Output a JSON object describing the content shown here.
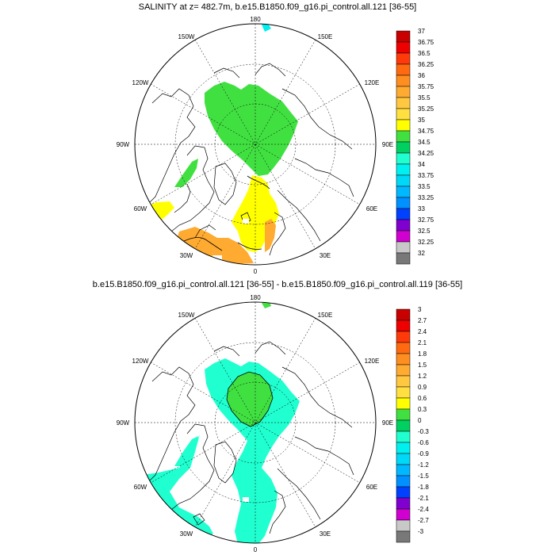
{
  "panels": [
    {
      "id": "top",
      "title": "SALINITY at z= 482.7m, b.e15.B1850.f09_g16.pi_control.all.121 [36-55]",
      "longitude_labels": [
        "180",
        "150E",
        "120E",
        "90E",
        "60E",
        "30E",
        "0",
        "30W",
        "60W",
        "90W",
        "120W",
        "150W"
      ],
      "colorbar_labels": [
        "37",
        "36.75",
        "36.5",
        "36.25",
        "36",
        "35.75",
        "35.5",
        "35.25",
        "35",
        "34.75",
        "34.5",
        "34.25",
        "34",
        "33.75",
        "33.5",
        "33.25",
        "33",
        "32.75",
        "32.5",
        "32.25",
        "32"
      ],
      "colorbar_colors": [
        "#c80000",
        "#ee0000",
        "#ff3a0a",
        "#ff6a10",
        "#ff8e20",
        "#ffaa30",
        "#ffc840",
        "#ffe040",
        "#ffff00",
        "#41e041",
        "#00d060",
        "#20ffd0",
        "#00f0f0",
        "#00d8f8",
        "#00b8ff",
        "#0090ff",
        "#0040ff",
        "#8000d0",
        "#d000d0",
        "#c8c8c8",
        "#787878"
      ]
    },
    {
      "id": "bottom",
      "title": "b.e15.B1850.f09_g16.pi_control.all.121 [36-55] - b.e15.B1850.f09_g16.pi_control.all.119 [36-55]",
      "longitude_labels": [
        "180",
        "150E",
        "120E",
        "90E",
        "60E",
        "30E",
        "0",
        "30W",
        "60W",
        "90W",
        "120W",
        "150W"
      ],
      "colorbar_labels": [
        "3",
        "2.7",
        "2.4",
        "2.1",
        "1.8",
        "1.5",
        "1.2",
        "0.9",
        "0.6",
        "0.3",
        "0",
        "-0.3",
        "-0.6",
        "-0.9",
        "-1.2",
        "-1.5",
        "-1.8",
        "-2.1",
        "-2.4",
        "-2.7",
        "-3"
      ],
      "colorbar_colors": [
        "#c80000",
        "#ee0000",
        "#ff3a0a",
        "#ff6a10",
        "#ff8e20",
        "#ffaa30",
        "#ffc840",
        "#ffe040",
        "#ffff00",
        "#41e041",
        "#00d060",
        "#20ffd0",
        "#00f0f0",
        "#00d8f8",
        "#00b8ff",
        "#0090ff",
        "#0040ff",
        "#8000d0",
        "#d000d0",
        "#c8c8c8",
        "#787878"
      ]
    }
  ],
  "colors": {
    "fill_green": "#41e041",
    "fill_yellow": "#ffff00",
    "fill_orange": "#ffaa30",
    "fill_cyan": "#20ffd0",
    "fill_aqua": "#00f0f0"
  }
}
